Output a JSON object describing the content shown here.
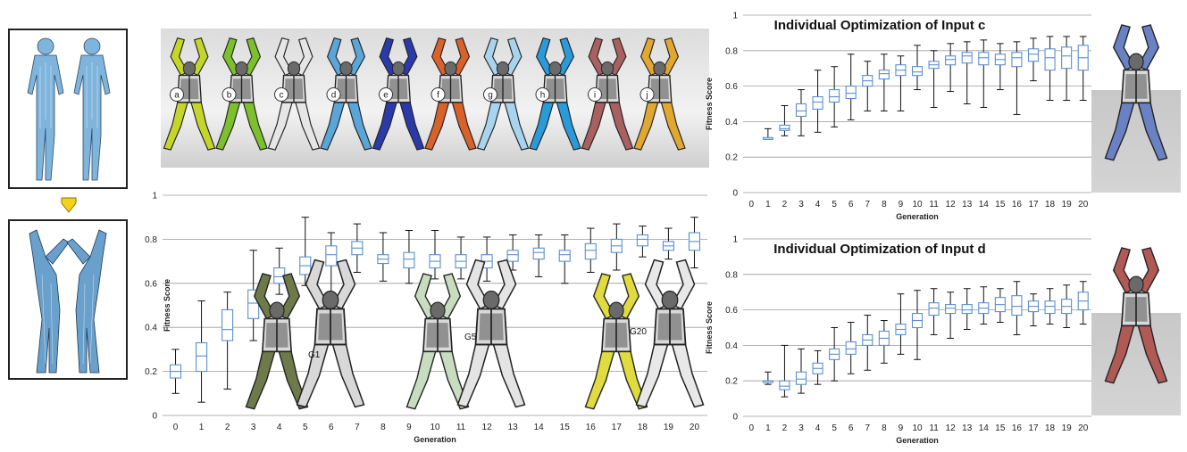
{
  "variant_labels": [
    "a",
    "b",
    "c",
    "d",
    "e",
    "f",
    "g",
    "h",
    "i",
    "j"
  ],
  "variant_colors": [
    "#c4d62a",
    "#7cc02c",
    "#e6e6e6",
    "#5aa6d8",
    "#2a3aa8",
    "#d8622a",
    "#a8d4ee",
    "#2a9ad8",
    "#a86060",
    "#e0a830"
  ],
  "generation_labels": [
    "G1",
    "G5",
    "G20"
  ],
  "chart_data": [
    {
      "type": "box",
      "id": "main",
      "title": "",
      "xlabel": "Generation",
      "ylabel": "Fitness Score",
      "ylim": [
        0,
        1
      ],
      "yticks": [
        "0",
        "0.2",
        "0.4",
        "0.6",
        "0.8",
        "1"
      ],
      "x": [
        "0",
        "1",
        "2",
        "3",
        "4",
        "5",
        "6",
        "7",
        "8",
        "9",
        "10",
        "11",
        "12",
        "13",
        "14",
        "15",
        "16",
        "17",
        "18",
        "19",
        "20"
      ],
      "boxes": [
        {
          "min": 0.1,
          "q1": 0.17,
          "med": 0.2,
          "q3": 0.23,
          "max": 0.3
        },
        {
          "min": 0.06,
          "q1": 0.2,
          "med": 0.27,
          "q3": 0.33,
          "max": 0.52
        },
        {
          "min": 0.12,
          "q1": 0.34,
          "med": 0.39,
          "q3": 0.48,
          "max": 0.56
        },
        {
          "min": 0.34,
          "q1": 0.44,
          "med": 0.51,
          "q3": 0.57,
          "max": 0.75
        },
        {
          "min": 0.55,
          "q1": 0.6,
          "med": 0.63,
          "q3": 0.67,
          "max": 0.76
        },
        {
          "min": 0.59,
          "q1": 0.64,
          "med": 0.68,
          "q3": 0.72,
          "max": 0.9
        },
        {
          "min": 0.48,
          "q1": 0.68,
          "med": 0.73,
          "q3": 0.77,
          "max": 0.83
        },
        {
          "min": 0.65,
          "q1": 0.73,
          "med": 0.76,
          "q3": 0.79,
          "max": 0.87
        },
        {
          "min": 0.61,
          "q1": 0.69,
          "med": 0.71,
          "q3": 0.73,
          "max": 0.83
        },
        {
          "min": 0.6,
          "q1": 0.67,
          "med": 0.71,
          "q3": 0.74,
          "max": 0.84
        },
        {
          "min": 0.62,
          "q1": 0.67,
          "med": 0.7,
          "q3": 0.73,
          "max": 0.84
        },
        {
          "min": 0.62,
          "q1": 0.67,
          "med": 0.7,
          "q3": 0.73,
          "max": 0.81
        },
        {
          "min": 0.61,
          "q1": 0.67,
          "med": 0.7,
          "q3": 0.73,
          "max": 0.81
        },
        {
          "min": 0.66,
          "q1": 0.7,
          "med": 0.73,
          "q3": 0.75,
          "max": 0.82
        },
        {
          "min": 0.63,
          "q1": 0.71,
          "med": 0.74,
          "q3": 0.76,
          "max": 0.82
        },
        {
          "min": 0.6,
          "q1": 0.7,
          "med": 0.73,
          "q3": 0.75,
          "max": 0.82
        },
        {
          "min": 0.65,
          "q1": 0.71,
          "med": 0.75,
          "q3": 0.78,
          "max": 0.85
        },
        {
          "min": 0.66,
          "q1": 0.74,
          "med": 0.77,
          "q3": 0.8,
          "max": 0.87
        },
        {
          "min": 0.72,
          "q1": 0.77,
          "med": 0.8,
          "q3": 0.82,
          "max": 0.86
        },
        {
          "min": 0.71,
          "q1": 0.75,
          "med": 0.77,
          "q3": 0.79,
          "max": 0.85
        },
        {
          "min": 0.67,
          "q1": 0.75,
          "med": 0.79,
          "q3": 0.83,
          "max": 0.9
        }
      ]
    },
    {
      "type": "box",
      "id": "c",
      "title": "Individual Optimization of Input c",
      "xlabel": "Generation",
      "ylabel": "Fitness Score",
      "ylim": [
        0,
        1
      ],
      "yticks": [
        "0",
        "0.2",
        "0.4",
        "0.6",
        "0.8",
        "1"
      ],
      "x": [
        "0",
        "1",
        "2",
        "3",
        "4",
        "5",
        "6",
        "7",
        "8",
        "9",
        "10",
        "11",
        "12",
        "13",
        "14",
        "15",
        "16",
        "17",
        "18",
        "19",
        "20"
      ],
      "boxes": [
        null,
        {
          "min": 0.3,
          "q1": 0.3,
          "med": 0.3,
          "q3": 0.31,
          "max": 0.36
        },
        {
          "min": 0.32,
          "q1": 0.35,
          "med": 0.36,
          "q3": 0.38,
          "max": 0.49
        },
        {
          "min": 0.32,
          "q1": 0.43,
          "med": 0.46,
          "q3": 0.5,
          "max": 0.58
        },
        {
          "min": 0.34,
          "q1": 0.47,
          "med": 0.51,
          "q3": 0.54,
          "max": 0.69
        },
        {
          "min": 0.37,
          "q1": 0.51,
          "med": 0.54,
          "q3": 0.58,
          "max": 0.71
        },
        {
          "min": 0.41,
          "q1": 0.53,
          "med": 0.56,
          "q3": 0.6,
          "max": 0.78
        },
        {
          "min": 0.46,
          "q1": 0.6,
          "med": 0.63,
          "q3": 0.66,
          "max": 0.74
        },
        {
          "min": 0.46,
          "q1": 0.64,
          "med": 0.67,
          "q3": 0.69,
          "max": 0.78
        },
        {
          "min": 0.46,
          "q1": 0.66,
          "med": 0.69,
          "q3": 0.72,
          "max": 0.77
        },
        {
          "min": 0.58,
          "q1": 0.66,
          "med": 0.68,
          "q3": 0.71,
          "max": 0.83
        },
        {
          "min": 0.48,
          "q1": 0.7,
          "med": 0.72,
          "q3": 0.74,
          "max": 0.8
        },
        {
          "min": 0.57,
          "q1": 0.72,
          "med": 0.75,
          "q3": 0.77,
          "max": 0.84
        },
        {
          "min": 0.5,
          "q1": 0.73,
          "med": 0.77,
          "q3": 0.79,
          "max": 0.85
        },
        {
          "min": 0.48,
          "q1": 0.72,
          "med": 0.76,
          "q3": 0.79,
          "max": 0.86
        },
        {
          "min": 0.58,
          "q1": 0.72,
          "med": 0.75,
          "q3": 0.78,
          "max": 0.84
        },
        {
          "min": 0.44,
          "q1": 0.71,
          "med": 0.76,
          "q3": 0.79,
          "max": 0.85
        },
        {
          "min": 0.63,
          "q1": 0.74,
          "med": 0.78,
          "q3": 0.81,
          "max": 0.87
        },
        {
          "min": 0.52,
          "q1": 0.69,
          "med": 0.76,
          "q3": 0.81,
          "max": 0.88
        },
        {
          "min": 0.52,
          "q1": 0.7,
          "med": 0.77,
          "q3": 0.82,
          "max": 0.88
        },
        {
          "min": 0.52,
          "q1": 0.69,
          "med": 0.76,
          "q3": 0.83,
          "max": 0.88
        }
      ]
    },
    {
      "type": "box",
      "id": "d",
      "title": "Individual Optimization of Input d",
      "xlabel": "Generation",
      "ylabel": "Fitness Score",
      "ylim": [
        0,
        1
      ],
      "yticks": [
        "0",
        "0.2",
        "0.4",
        "0.6",
        "0.8",
        "1"
      ],
      "x": [
        "0",
        "1",
        "2",
        "3",
        "4",
        "5",
        "6",
        "7",
        "8",
        "9",
        "10",
        "11",
        "12",
        "13",
        "14",
        "15",
        "16",
        "17",
        "18",
        "19",
        "20"
      ],
      "boxes": [
        null,
        {
          "min": 0.18,
          "q1": 0.19,
          "med": 0.2,
          "q3": 0.2,
          "max": 0.25
        },
        {
          "min": 0.11,
          "q1": 0.15,
          "med": 0.17,
          "q3": 0.2,
          "max": 0.4
        },
        {
          "min": 0.13,
          "q1": 0.18,
          "med": 0.21,
          "q3": 0.25,
          "max": 0.38
        },
        {
          "min": 0.18,
          "q1": 0.24,
          "med": 0.27,
          "q3": 0.3,
          "max": 0.37
        },
        {
          "min": 0.2,
          "q1": 0.32,
          "med": 0.35,
          "q3": 0.38,
          "max": 0.5
        },
        {
          "min": 0.24,
          "q1": 0.35,
          "med": 0.38,
          "q3": 0.42,
          "max": 0.53
        },
        {
          "min": 0.26,
          "q1": 0.4,
          "med": 0.43,
          "q3": 0.46,
          "max": 0.57
        },
        {
          "min": 0.3,
          "q1": 0.4,
          "med": 0.44,
          "q3": 0.48,
          "max": 0.54
        },
        {
          "min": 0.35,
          "q1": 0.46,
          "med": 0.49,
          "q3": 0.52,
          "max": 0.69
        },
        {
          "min": 0.32,
          "q1": 0.5,
          "med": 0.54,
          "q3": 0.58,
          "max": 0.71
        },
        {
          "min": 0.46,
          "q1": 0.57,
          "med": 0.61,
          "q3": 0.64,
          "max": 0.72
        },
        {
          "min": 0.44,
          "q1": 0.58,
          "med": 0.61,
          "q3": 0.63,
          "max": 0.7
        },
        {
          "min": 0.49,
          "q1": 0.58,
          "med": 0.6,
          "q3": 0.63,
          "max": 0.72
        },
        {
          "min": 0.52,
          "q1": 0.58,
          "med": 0.61,
          "q3": 0.64,
          "max": 0.73
        },
        {
          "min": 0.53,
          "q1": 0.59,
          "med": 0.63,
          "q3": 0.67,
          "max": 0.72
        },
        {
          "min": 0.46,
          "q1": 0.57,
          "med": 0.62,
          "q3": 0.68,
          "max": 0.76
        },
        {
          "min": 0.51,
          "q1": 0.59,
          "med": 0.62,
          "q3": 0.65,
          "max": 0.69
        },
        {
          "min": 0.52,
          "q1": 0.58,
          "med": 0.62,
          "q3": 0.65,
          "max": 0.72
        },
        {
          "min": 0.5,
          "q1": 0.58,
          "med": 0.62,
          "q3": 0.66,
          "max": 0.74
        },
        {
          "min": 0.52,
          "q1": 0.6,
          "med": 0.65,
          "q3": 0.7,
          "max": 0.76
        }
      ]
    }
  ]
}
